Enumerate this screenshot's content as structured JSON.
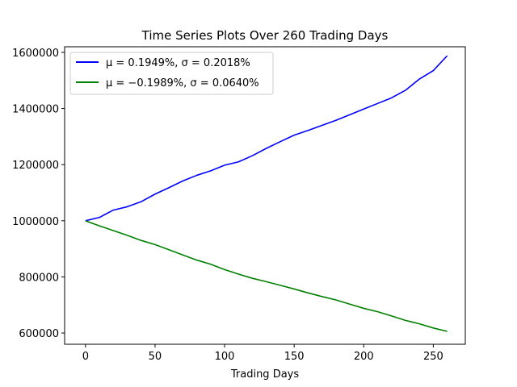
{
  "chart_data": {
    "type": "line",
    "title": "Time Series Plots Over 260 Trading Days",
    "xlabel": "Trading Days",
    "ylabel": "",
    "xlim": [
      -15,
      273
    ],
    "ylim": [
      560000,
      1620000
    ],
    "xticks": [
      0,
      50,
      100,
      150,
      200,
      250
    ],
    "yticks": [
      600000,
      800000,
      1000000,
      1200000,
      1400000,
      1600000
    ],
    "grid": false,
    "legend_position": "upper-left",
    "series": [
      {
        "name": "μ = 0.1949%, σ = 0.2018%",
        "color": "#0000ff",
        "x": [
          0,
          10,
          20,
          30,
          40,
          50,
          60,
          70,
          80,
          90,
          100,
          110,
          120,
          130,
          140,
          150,
          160,
          170,
          180,
          190,
          200,
          210,
          220,
          230,
          240,
          250,
          260
        ],
        "values": [
          1000000,
          1012000,
          1038000,
          1050000,
          1068000,
          1095000,
          1118000,
          1142000,
          1162000,
          1178000,
          1198000,
          1210000,
          1232000,
          1258000,
          1282000,
          1305000,
          1322000,
          1340000,
          1358000,
          1378000,
          1398000,
          1418000,
          1438000,
          1465000,
          1505000,
          1535000,
          1588000
        ]
      },
      {
        "name": "μ = −0.1989%, σ = 0.0640%",
        "color": "#008000",
        "x": [
          0,
          10,
          20,
          30,
          40,
          50,
          60,
          70,
          80,
          90,
          100,
          110,
          120,
          130,
          140,
          150,
          160,
          170,
          180,
          190,
          200,
          210,
          220,
          230,
          240,
          250,
          260
        ],
        "values": [
          1000000,
          982000,
          965000,
          948000,
          930000,
          915000,
          897000,
          878000,
          860000,
          845000,
          826000,
          810000,
          795000,
          783000,
          770000,
          757000,
          743000,
          730000,
          718000,
          703000,
          688000,
          676000,
          661000,
          645000,
          633000,
          618000,
          606000
        ]
      }
    ]
  }
}
